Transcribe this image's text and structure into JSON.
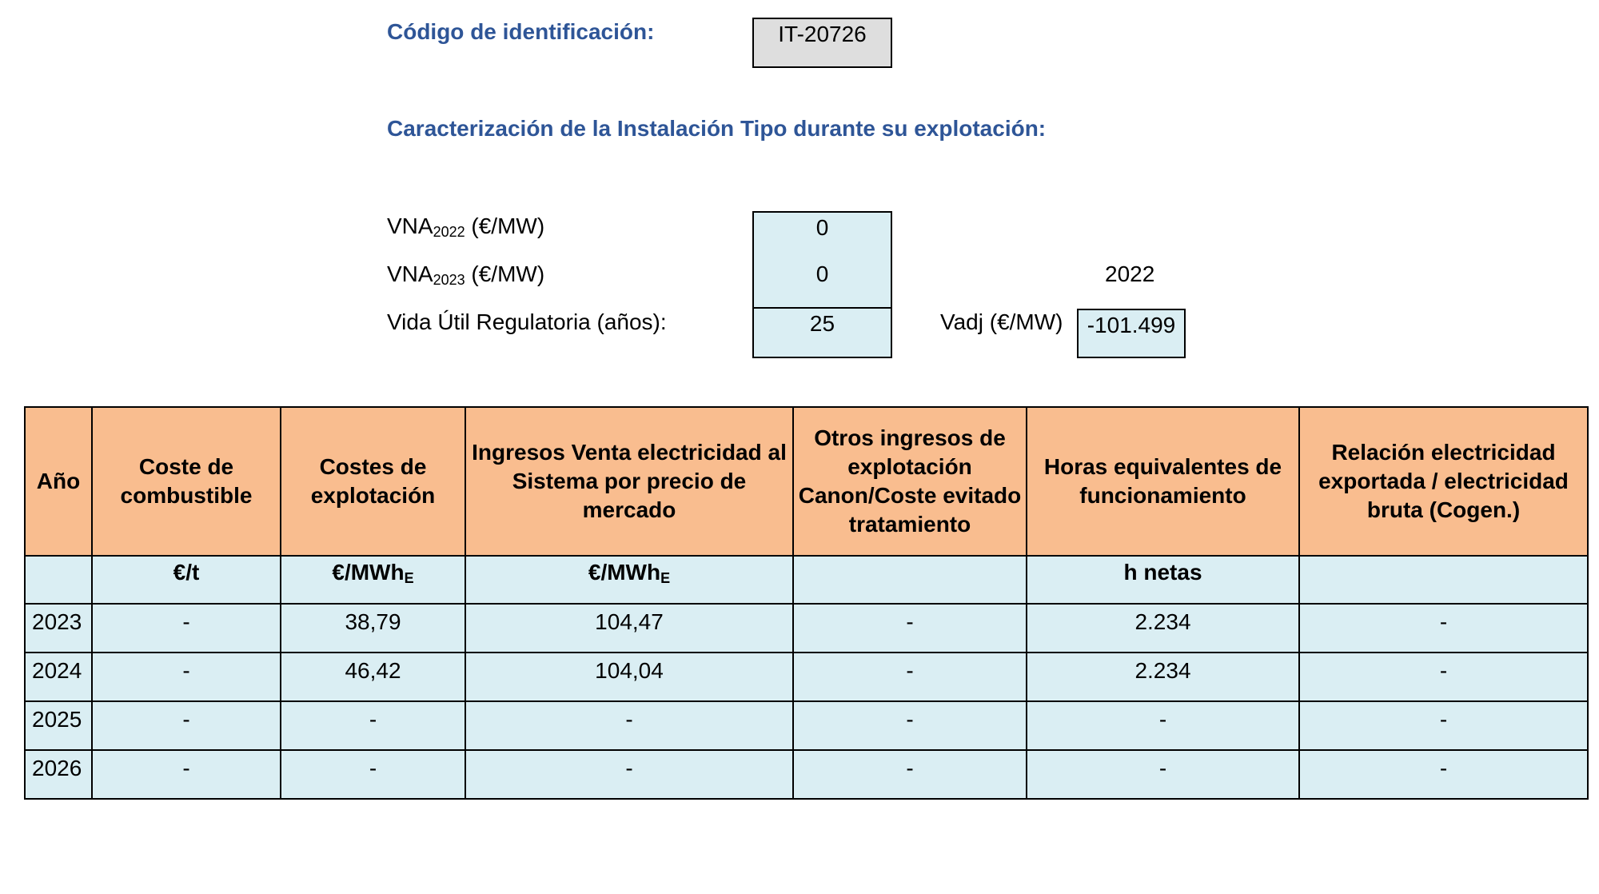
{
  "header": {
    "id_label": "Código de identificación:",
    "id_value": "IT-20726",
    "section_title": "Caracterización de la Instalación Tipo durante su explotación:"
  },
  "params": {
    "vna2022_label_main": "VNA",
    "vna2022_label_sub": "2022",
    "vna2022_label_unit": " (€/MW)",
    "vna2022_value": "0",
    "vna2023_label_main": "VNA",
    "vna2023_label_sub": "2023",
    "vna2023_label_unit": " (€/MW)",
    "vna2023_value": "0",
    "vida_label": "Vida Útil Regulatoria (años):",
    "vida_value": "25",
    "year_label": "2022",
    "vadj_label": "Vadj (€/MW)",
    "vadj_value": "-101.499"
  },
  "table": {
    "headers": [
      "Año",
      "Coste de combustible",
      "Costes de explotación",
      "Ingresos Venta electricidad al Sistema por precio de mercado",
      "Otros ingresos de explotación Canon/Coste evitado tratamiento",
      "Horas equivalentes de funcionamiento",
      "Relación electricidad exportada / electricidad bruta (Cogen.)"
    ],
    "units": {
      "anio": "",
      "combustible": "€/t",
      "explotacion_main": "€/MWh",
      "explotacion_sub": "E",
      "ingresos_main": "€/MWh",
      "ingresos_sub": "E",
      "otros": "",
      "horas": "h netas",
      "relacion": ""
    },
    "rows": [
      {
        "anio": "2023",
        "combustible": "-",
        "explotacion": "38,79",
        "ingresos": "104,47",
        "otros": "-",
        "horas": "2.234",
        "relacion": "-"
      },
      {
        "anio": "2024",
        "combustible": "-",
        "explotacion": "46,42",
        "ingresos": "104,04",
        "otros": "-",
        "horas": "2.234",
        "relacion": "-"
      },
      {
        "anio": "2025",
        "combustible": "-",
        "explotacion": "-",
        "ingresos": "-",
        "otros": "-",
        "horas": "-",
        "relacion": "-"
      },
      {
        "anio": "2026",
        "combustible": "-",
        "explotacion": "-",
        "ingresos": "-",
        "otros": "-",
        "horas": "-",
        "relacion": "-"
      }
    ]
  }
}
